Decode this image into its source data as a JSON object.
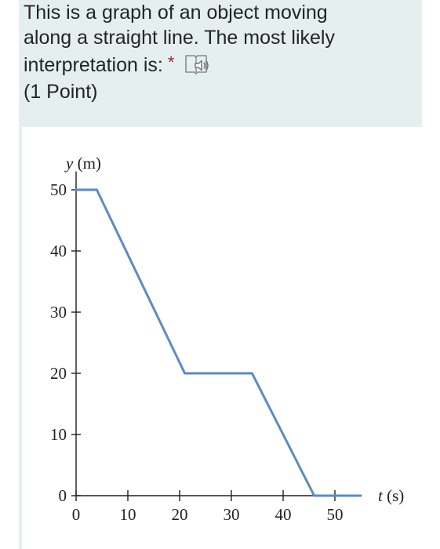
{
  "question": {
    "lines": [
      "This is a graph of an object moving",
      "along a straight line. The most likely",
      "interpretation is:"
    ],
    "required_marker": "*",
    "points": "(1 Point)",
    "speaker_icon": "immersive-reader-speaker-icon",
    "accent_colors": {
      "required": "#a4262c",
      "card_bg": "#e6efef"
    }
  },
  "chart_data": {
    "type": "line",
    "ylabel_var": "y",
    "ylabel_unit": "(m)",
    "xlabel_var": "t",
    "xlabel_unit": "(s)",
    "x_ticks": [
      0,
      10,
      20,
      30,
      40,
      50
    ],
    "y_ticks": [
      0,
      10,
      20,
      30,
      40,
      50
    ],
    "xlim": [
      0,
      55
    ],
    "ylim": [
      0,
      53
    ],
    "series": [
      {
        "color": "#5b8bc4",
        "x": [
          0,
          4,
          21,
          34,
          46,
          55
        ],
        "y": [
          50,
          50,
          20,
          20,
          0,
          0
        ]
      }
    ],
    "grid": false,
    "legend": "none"
  }
}
